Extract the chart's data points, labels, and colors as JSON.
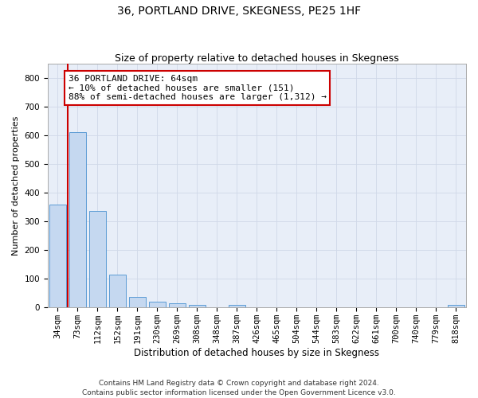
{
  "title": "36, PORTLAND DRIVE, SKEGNESS, PE25 1HF",
  "subtitle": "Size of property relative to detached houses in Skegness",
  "xlabel": "Distribution of detached houses by size in Skegness",
  "ylabel": "Number of detached properties",
  "categories": [
    "34sqm",
    "73sqm",
    "112sqm",
    "152sqm",
    "191sqm",
    "230sqm",
    "269sqm",
    "308sqm",
    "348sqm",
    "387sqm",
    "426sqm",
    "465sqm",
    "504sqm",
    "544sqm",
    "583sqm",
    "622sqm",
    "661sqm",
    "700sqm",
    "740sqm",
    "779sqm",
    "818sqm"
  ],
  "values": [
    358,
    611,
    336,
    114,
    36,
    20,
    15,
    10,
    0,
    8,
    0,
    0,
    0,
    0,
    0,
    0,
    0,
    0,
    0,
    0,
    8
  ],
  "bar_color": "#c5d8f0",
  "bar_edge_color": "#5b9bd5",
  "annotation_text": "36 PORTLAND DRIVE: 64sqm\n← 10% of detached houses are smaller (151)\n88% of semi-detached houses are larger (1,312) →",
  "annotation_box_color": "#ffffff",
  "annotation_box_edge": "#cc0000",
  "vline_x": 0.5,
  "ylim": [
    0,
    850
  ],
  "yticks": [
    0,
    100,
    200,
    300,
    400,
    500,
    600,
    700,
    800
  ],
  "grid_color": "#d0d8e8",
  "bg_color": "#e8eef8",
  "footer": "Contains HM Land Registry data © Crown copyright and database right 2024.\nContains public sector information licensed under the Open Government Licence v3.0.",
  "title_fontsize": 10,
  "subtitle_fontsize": 9,
  "ylabel_fontsize": 8,
  "xlabel_fontsize": 8.5,
  "tick_fontsize": 7.5,
  "annotation_fontsize": 8,
  "footer_fontsize": 6.5
}
